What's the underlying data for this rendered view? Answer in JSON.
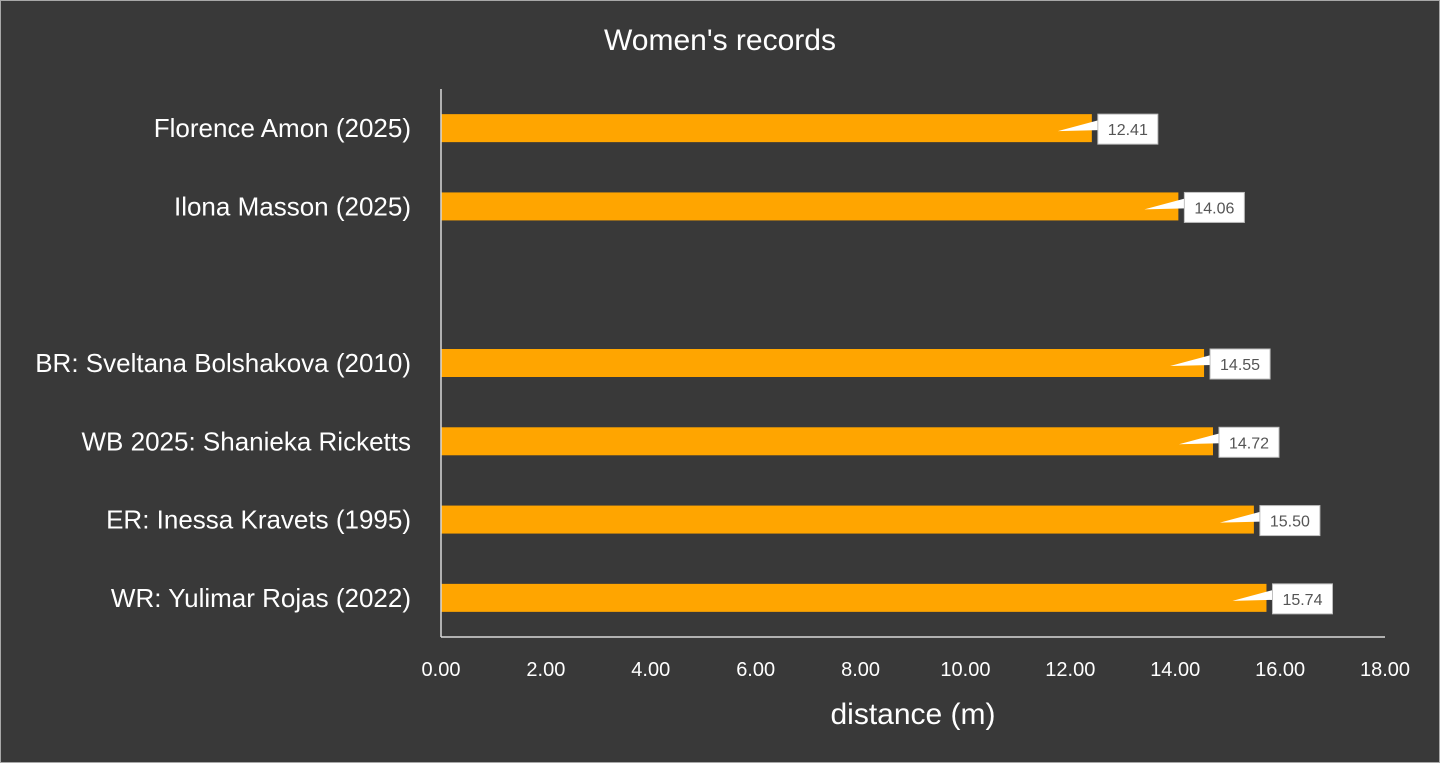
{
  "chart_data": {
    "type": "bar",
    "orientation": "horizontal",
    "title": "Women's records",
    "xlabel": "distance (m)",
    "ylabel": "",
    "xlim": [
      0,
      18
    ],
    "x_ticks": [
      "0.00",
      "2.00",
      "4.00",
      "6.00",
      "8.00",
      "10.00",
      "12.00",
      "14.00",
      "16.00",
      "18.00"
    ],
    "categories": [
      "Florence Amon (2025)",
      "Ilona Masson (2025)",
      "",
      "BR: Sveltana Bolshakova (2010)",
      "WB 2025: Shanieka Ricketts",
      "ER: Inessa Kravets (1995)",
      "WR: Yulimar Rojas (2022)"
    ],
    "values": [
      12.41,
      14.06,
      null,
      14.55,
      14.72,
      15.5,
      15.74
    ],
    "data_labels": [
      "12.41",
      "14.06",
      "",
      "14.55",
      "14.72",
      "15.50",
      "15.74"
    ],
    "bar_color": "#FFA500",
    "background_color": "#393939",
    "grid": false,
    "legend": "none"
  }
}
